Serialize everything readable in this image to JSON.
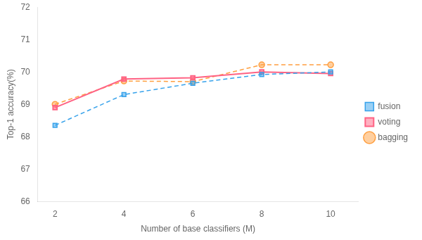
{
  "chart_data": {
    "type": "line",
    "x": [
      2,
      4,
      6,
      8,
      10
    ],
    "series": [
      {
        "name": "fusion",
        "values": [
          68.35,
          69.3,
          69.65,
          69.92,
          70.0
        ],
        "marker": "square",
        "line_style": "dashed"
      },
      {
        "name": "voting",
        "values": [
          68.9,
          69.78,
          69.82,
          70.0,
          69.95
        ],
        "marker": "square",
        "line_style": "solid"
      },
      {
        "name": "bagging",
        "values": [
          69.0,
          69.72,
          69.7,
          70.22,
          70.22
        ],
        "marker": "circle",
        "line_style": "dashed"
      }
    ],
    "xlabel": "Number of base classifiers (M)",
    "ylabel": "Top-1 accuracy(%)",
    "xlim": [
      1.5,
      10.8
    ],
    "xticks": [
      2,
      4,
      6,
      8,
      10
    ],
    "ylim": [
      66,
      72
    ],
    "yticks": [
      66,
      67,
      68,
      69,
      70,
      71,
      72
    ],
    "grid": false,
    "legend": "right"
  }
}
